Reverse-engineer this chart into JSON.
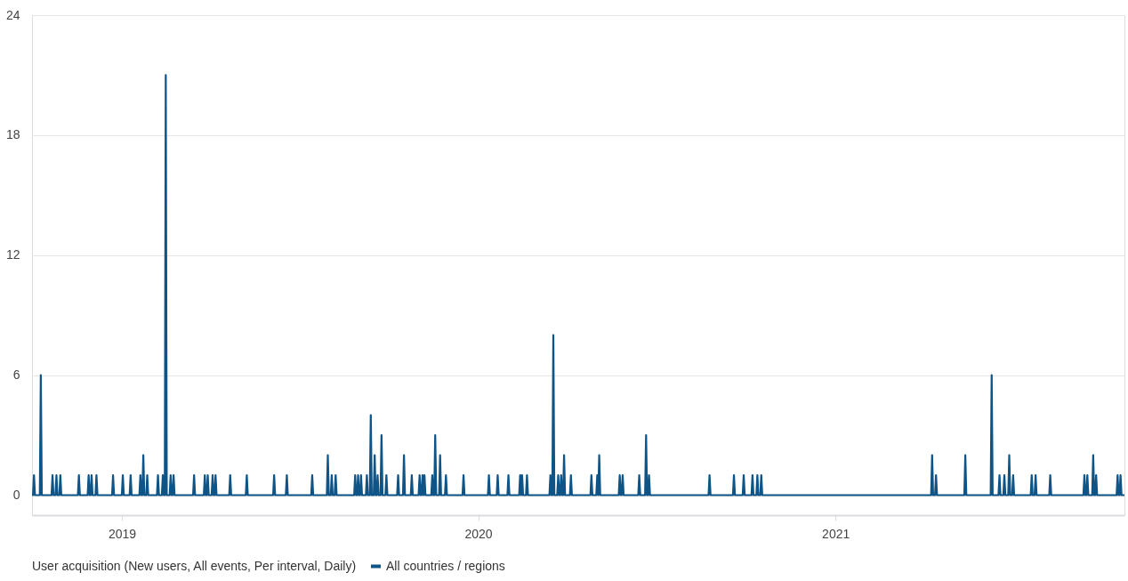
{
  "chart_data": {
    "type": "line",
    "legend_title": "User acquisition (New users, All events, Per interval, Daily)",
    "xlim": [
      "2018-10-01",
      "2021-10-24"
    ],
    "xticks": [
      {
        "value": "2019-01-01",
        "label": "2019"
      },
      {
        "value": "2020-01-01",
        "label": "2020"
      },
      {
        "value": "2021-01-01",
        "label": "2021"
      }
    ],
    "ylim": [
      -1,
      24
    ],
    "yticks": [
      0,
      6,
      12,
      18,
      24
    ],
    "grid": "y",
    "legend": "bottom",
    "marker": "none",
    "line_style": "solid",
    "series": [
      {
        "name": "All countries / regions",
        "color": "#0f5486",
        "x": [
          "2018-10-01",
          "2018-10-02",
          "2018-10-03",
          "2018-10-04",
          "2018-10-09",
          "2018-10-10",
          "2018-10-11",
          "2018-10-21",
          "2018-10-22",
          "2018-10-23",
          "2018-10-25",
          "2018-10-26",
          "2018-10-27",
          "2018-10-29",
          "2018-10-30",
          "2018-10-31",
          "2018-11-17",
          "2018-11-18",
          "2018-11-19",
          "2018-11-27",
          "2018-11-28",
          "2018-11-29",
          "2018-11-30",
          "2018-12-01",
          "2018-12-02",
          "2018-12-05",
          "2018-12-06",
          "2018-12-07",
          "2018-12-22",
          "2018-12-23",
          "2018-12-24",
          "2019-01-01",
          "2019-01-02",
          "2019-01-03",
          "2019-01-09",
          "2019-01-10",
          "2019-01-11",
          "2019-01-19",
          "2019-01-20",
          "2019-01-21",
          "2019-01-22",
          "2019-01-23",
          "2019-01-24",
          "2019-01-26",
          "2019-01-27",
          "2019-01-28",
          "2019-02-06",
          "2019-02-07",
          "2019-02-08",
          "2019-02-11",
          "2019-02-12",
          "2019-02-13",
          "2019-02-14",
          "2019-02-15",
          "2019-02-16",
          "2019-02-19",
          "2019-02-20",
          "2019-02-21",
          "2019-02-22",
          "2019-02-23",
          "2019-02-24",
          "2019-03-15",
          "2019-03-16",
          "2019-03-17",
          "2019-03-26",
          "2019-03-27",
          "2019-03-28",
          "2019-03-29",
          "2019-03-30",
          "2019-03-31",
          "2019-04-03",
          "2019-04-04",
          "2019-04-05",
          "2019-04-06",
          "2019-04-07",
          "2019-04-08",
          "2019-04-21",
          "2019-04-22",
          "2019-04-23",
          "2019-05-08",
          "2019-05-09",
          "2019-05-10",
          "2019-06-05",
          "2019-06-06",
          "2019-06-07",
          "2019-06-18",
          "2019-06-19",
          "2019-06-20",
          "2019-07-14",
          "2019-07-15",
          "2019-07-16",
          "2019-07-30",
          "2019-07-31",
          "2019-08-01",
          "2019-08-03",
          "2019-08-04",
          "2019-08-05",
          "2019-08-07",
          "2019-08-08",
          "2019-08-09",
          "2019-08-27",
          "2019-08-28",
          "2019-08-29",
          "2019-08-30",
          "2019-08-31",
          "2019-09-01",
          "2019-09-02",
          "2019-09-03",
          "2019-09-04",
          "2019-09-08",
          "2019-09-09",
          "2019-09-10",
          "2019-09-12",
          "2019-09-13",
          "2019-09-14",
          "2019-09-16",
          "2019-09-17",
          "2019-09-18",
          "2019-09-19",
          "2019-09-20",
          "2019-09-21",
          "2019-09-23",
          "2019-09-24",
          "2019-09-25",
          "2019-09-28",
          "2019-09-29",
          "2019-09-30",
          "2019-10-10",
          "2019-10-11",
          "2019-10-12",
          "2019-10-16",
          "2019-10-17",
          "2019-10-18",
          "2019-10-24",
          "2019-10-25",
          "2019-10-26",
          "2019-11-01",
          "2019-11-02",
          "2019-11-03",
          "2019-11-04",
          "2019-11-05",
          "2019-11-06",
          "2019-11-07",
          "2019-11-08",
          "2019-11-14",
          "2019-11-15",
          "2019-11-16",
          "2019-11-17",
          "2019-11-18",
          "2019-11-19",
          "2019-11-22",
          "2019-11-23",
          "2019-11-24",
          "2019-11-28",
          "2019-11-29",
          "2019-11-30",
          "2019-12-16",
          "2019-12-17",
          "2019-12-18",
          "2020-01-11",
          "2020-01-12",
          "2020-01-13",
          "2020-01-20",
          "2020-01-21",
          "2020-01-22",
          "2020-01-31",
          "2020-02-01",
          "2020-02-02",
          "2020-02-12",
          "2020-02-13",
          "2020-02-14",
          "2020-02-15",
          "2020-02-16",
          "2020-02-19",
          "2020-02-20",
          "2020-02-21",
          "2020-03-14",
          "2020-03-15",
          "2020-03-16",
          "2020-03-17",
          "2020-03-18",
          "2020-03-19",
          "2020-03-22",
          "2020-03-23",
          "2020-03-24",
          "2020-03-25",
          "2020-03-26",
          "2020-03-27",
          "2020-03-28",
          "2020-03-29",
          "2020-03-30",
          "2020-04-04",
          "2020-04-05",
          "2020-04-06",
          "2020-04-25",
          "2020-04-26",
          "2020-04-27",
          "2020-05-01",
          "2020-05-02",
          "2020-05-03",
          "2020-05-04",
          "2020-05-05",
          "2020-05-24",
          "2020-05-25",
          "2020-05-26",
          "2020-05-27",
          "2020-05-28",
          "2020-05-29",
          "2020-06-13",
          "2020-06-14",
          "2020-06-15",
          "2020-06-20",
          "2020-06-21",
          "2020-06-22",
          "2020-06-23",
          "2020-06-24",
          "2020-06-25",
          "2020-08-24",
          "2020-08-25",
          "2020-08-26",
          "2020-09-18",
          "2020-09-19",
          "2020-09-20",
          "2020-09-28",
          "2020-09-29",
          "2020-09-30",
          "2020-10-07",
          "2020-10-08",
          "2020-10-09",
          "2020-10-12",
          "2020-10-13",
          "2020-10-14",
          "2020-10-16",
          "2020-10-17",
          "2020-10-18",
          "2021-04-09",
          "2021-04-10",
          "2021-04-11",
          "2021-04-13",
          "2021-04-14",
          "2021-04-15",
          "2021-05-13",
          "2021-05-14",
          "2021-05-15",
          "2021-06-09",
          "2021-06-10",
          "2021-06-11",
          "2021-06-17",
          "2021-06-18",
          "2021-06-19",
          "2021-06-22",
          "2021-06-23",
          "2021-06-24",
          "2021-06-27",
          "2021-06-28",
          "2021-06-29",
          "2021-07-01",
          "2021-07-02",
          "2021-07-03",
          "2021-07-20",
          "2021-07-21",
          "2021-07-22",
          "2021-07-24",
          "2021-07-25",
          "2021-07-26",
          "2021-08-08",
          "2021-08-09",
          "2021-08-10",
          "2021-09-12",
          "2021-09-13",
          "2021-09-14",
          "2021-09-15",
          "2021-09-16",
          "2021-09-17",
          "2021-09-21",
          "2021-09-22",
          "2021-09-23",
          "2021-09-24",
          "2021-09-25",
          "2021-09-26",
          "2021-10-16",
          "2021-10-17",
          "2021-10-18",
          "2021-10-19",
          "2021-10-20",
          "2021-10-21",
          "2021-10-24"
        ],
        "values": [
          0,
          0,
          1,
          0,
          0,
          6,
          0,
          0,
          1,
          0,
          0,
          1,
          0,
          0,
          1,
          0,
          0,
          1,
          0,
          0,
          1,
          0,
          0,
          1,
          0,
          0,
          1,
          0,
          0,
          1,
          0,
          0,
          1,
          0,
          0,
          1,
          0,
          0,
          1,
          0,
          0,
          2,
          0,
          0,
          1,
          0,
          0,
          1,
          0,
          0,
          1,
          0,
          0,
          21,
          0,
          0,
          1,
          0,
          0,
          1,
          0,
          0,
          1,
          0,
          0,
          1,
          0,
          0,
          1,
          0,
          0,
          1,
          0,
          0,
          1,
          0,
          0,
          1,
          0,
          0,
          1,
          0,
          0,
          1,
          0,
          0,
          1,
          0,
          0,
          1,
          0,
          0,
          2,
          0,
          0,
          1,
          0,
          0,
          1,
          0,
          0,
          1,
          0,
          0,
          1,
          0,
          0,
          1,
          0,
          0,
          1,
          0,
          0,
          4,
          0,
          0,
          2,
          0,
          0,
          1,
          0,
          0,
          3,
          0,
          0,
          1,
          0,
          0,
          1,
          0,
          0,
          2,
          0,
          0,
          1,
          0,
          0,
          1,
          0,
          0,
          1,
          0,
          1,
          0,
          0,
          1,
          0,
          0,
          3,
          0,
          0,
          2,
          0,
          0,
          1,
          0,
          0,
          1,
          0,
          0,
          1,
          0,
          0,
          1,
          0,
          0,
          1,
          0,
          0,
          1,
          0,
          1,
          0,
          0,
          1,
          0,
          0,
          1,
          0,
          0,
          8,
          0,
          0,
          1,
          0,
          0,
          1,
          0,
          0,
          2,
          0,
          0,
          1,
          0,
          0,
          1,
          0,
          0,
          1,
          0,
          2,
          0,
          0,
          1,
          0,
          0,
          1,
          0,
          0,
          1,
          0,
          0,
          3,
          0,
          0,
          1,
          0,
          0,
          1,
          0,
          0,
          1,
          0,
          0,
          1,
          0,
          0,
          1,
          0,
          0,
          1,
          0,
          0,
          1,
          0,
          0,
          2,
          0,
          0,
          1,
          0,
          0,
          2,
          0,
          0,
          6,
          0,
          0,
          1,
          0,
          0,
          1,
          0,
          0,
          2,
          0,
          0,
          1,
          0,
          0,
          1,
          0,
          0,
          1,
          0,
          0,
          1,
          0,
          0,
          1,
          0,
          0,
          1,
          0,
          0,
          2,
          0,
          0,
          1,
          0,
          0,
          1,
          0,
          0,
          1,
          0,
          0
        ]
      }
    ]
  }
}
